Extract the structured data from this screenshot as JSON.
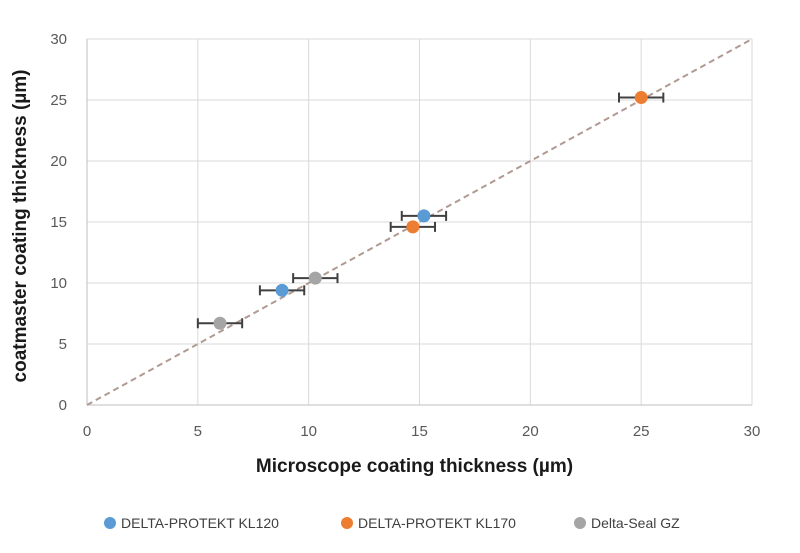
{
  "chart_data": {
    "type": "scatter",
    "title": "",
    "xlabel": "Microscope coating thickness (µm)",
    "ylabel": "coatmaster coating thickness (µm)",
    "xlim": [
      0,
      30
    ],
    "ylim": [
      0,
      30
    ],
    "xticks": [
      0,
      5,
      10,
      15,
      20,
      25,
      30
    ],
    "yticks": [
      0,
      5,
      10,
      15,
      20,
      25,
      30
    ],
    "grid": true,
    "legend_position": "bottom",
    "reference_line": {
      "style": "dashed",
      "color": "#b09a92",
      "from": [
        0,
        0
      ],
      "to": [
        30,
        30
      ]
    },
    "series": [
      {
        "name": "DELTA-PROTEKT KL120",
        "color": "#5b9bd5",
        "points": [
          {
            "x": 8.8,
            "y": 9.4,
            "xerr": 1.0
          },
          {
            "x": 15.2,
            "y": 15.5,
            "xerr": 1.0
          }
        ]
      },
      {
        "name": "DELTA-PROTEKT KL170",
        "color": "#ed7d31",
        "points": [
          {
            "x": 14.7,
            "y": 14.6,
            "xerr": 1.0
          },
          {
            "x": 25.0,
            "y": 25.2,
            "xerr": 1.0
          }
        ]
      },
      {
        "name": "Delta-Seal GZ",
        "color": "#a5a5a5",
        "points": [
          {
            "x": 6.0,
            "y": 6.7,
            "xerr": 1.0
          },
          {
            "x": 10.3,
            "y": 10.4,
            "xerr": 1.0
          }
        ]
      }
    ]
  }
}
